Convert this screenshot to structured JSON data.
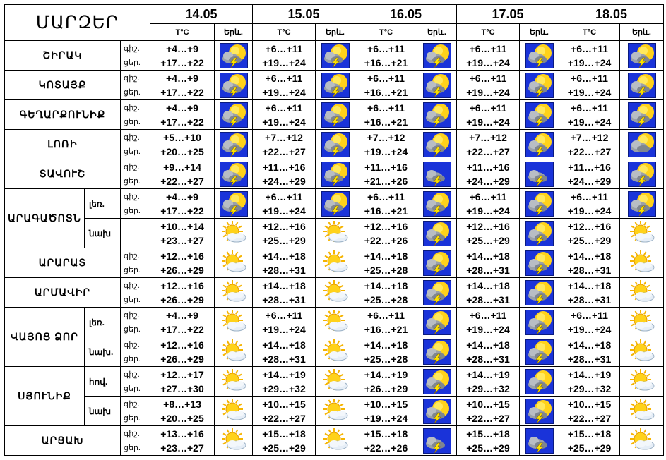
{
  "title": "ՄԱՐԶԵՐ",
  "header": {
    "dates": [
      "14.05",
      "15.05",
      "16.05",
      "17.05",
      "18.05"
    ],
    "temp_label": "T°C",
    "icon_label": "Երև."
  },
  "rows": [
    {
      "region": "ՇԻՐԱԿ",
      "subrows": [
        {
          "label": "",
          "times": [
            "գիշ.",
            "ցեր."
          ],
          "days": [
            {
              "night": "+4…+9",
              "day": "+17…+22",
              "icon": "sun-cloud-thunder-icon"
            },
            {
              "night": "+6…+11",
              "day": "+19…+24",
              "icon": "sun-cloud-thunder-icon"
            },
            {
              "night": "+6…+11",
              "day": "+16…+21",
              "icon": "sun-cloud-thunder-icon"
            },
            {
              "night": "+6…+11",
              "day": "+19…+24",
              "icon": "sun-cloud-thunder-icon"
            },
            {
              "night": "+6…+11",
              "day": "+19…+24",
              "icon": "sun-cloud-thunder-icon"
            }
          ]
        }
      ]
    },
    {
      "region": "ԿՈՏԱՅՔ",
      "subrows": [
        {
          "label": "",
          "times": [
            "գիշ.",
            "ցեր."
          ],
          "days": [
            {
              "night": "+4…+9",
              "day": "+17…+22",
              "icon": "sun-cloud-thunder-icon"
            },
            {
              "night": "+6…+11",
              "day": "+19…+24",
              "icon": "sun-cloud-thunder-icon"
            },
            {
              "night": "+6…+11",
              "day": "+16…+21",
              "icon": "sun-cloud-thunder-icon"
            },
            {
              "night": "+6…+11",
              "day": "+19…+24",
              "icon": "sun-cloud-thunder-icon"
            },
            {
              "night": "+6…+11",
              "day": "+19…+24",
              "icon": "sun-cloud-thunder-icon"
            }
          ]
        }
      ]
    },
    {
      "region": "ԳԵՂԱՐՔՈՒՆԻՔ",
      "subrows": [
        {
          "label": "",
          "times": [
            "գիշ.",
            "ցեր."
          ],
          "days": [
            {
              "night": "+4…+9",
              "day": "+17…+22",
              "icon": "sun-cloud-thunder-icon"
            },
            {
              "night": "+6…+11",
              "day": "+19…+24",
              "icon": "sun-cloud-thunder-icon"
            },
            {
              "night": "+6…+11",
              "day": "+16…+21",
              "icon": "sun-cloud-thunder-icon"
            },
            {
              "night": "+6…+11",
              "day": "+19…+24",
              "icon": "sun-cloud-thunder-icon"
            },
            {
              "night": "+6…+11",
              "day": "+19…+24",
              "icon": "sun-cloud-thunder-icon"
            }
          ]
        }
      ]
    },
    {
      "region": "ԼՈՌԻ",
      "subrows": [
        {
          "label": "",
          "times": [
            "գիշ.",
            "ցեր."
          ],
          "days": [
            {
              "night": "+5…+10",
              "day": "+20…+25",
              "icon": "sun-cloud-thunder-icon"
            },
            {
              "night": "+7…+12",
              "day": "+22…+27",
              "icon": "sun-cloud-thunder-icon"
            },
            {
              "night": "+7…+12",
              "day": "+19…+24",
              "icon": "sun-cloud-thunder-icon"
            },
            {
              "night": "+7…+12",
              "day": "+22…+27",
              "icon": "sun-cloud-thunder-icon"
            },
            {
              "night": "+7…+12",
              "day": "+22…+27",
              "icon": "sun-cloud-icon"
            }
          ]
        }
      ]
    },
    {
      "region": "ՏԱՎՈՒՇ",
      "subrows": [
        {
          "label": "",
          "times": [
            "գիշ.",
            "ցեր."
          ],
          "days": [
            {
              "night": "+9…+14",
              "day": "+22…+27",
              "icon": "sun-cloud-thunder-icon"
            },
            {
              "night": "+11…+16",
              "day": "+24…+29",
              "icon": "sun-cloud-thunder-icon"
            },
            {
              "night": "+11…+16",
              "day": "+21…+26",
              "icon": "cloud-thunder-icon"
            },
            {
              "night": "+11…+16",
              "day": "+24…+29",
              "icon": "cloud-thunder-icon"
            },
            {
              "night": "+11…+16",
              "day": "+24…+29",
              "icon": "sun-cloud-thunder-icon"
            }
          ]
        }
      ]
    },
    {
      "region": "ԱՐԱԳԱԾՈՏՆ",
      "subrows": [
        {
          "label": "լեռ.",
          "times": [
            "գիշ.",
            "ցեր."
          ],
          "days": [
            {
              "night": "+4…+9",
              "day": "+17…+22",
              "icon": "sun-cloud-thunder-icon"
            },
            {
              "night": "+6…+11",
              "day": "+19…+24",
              "icon": "sun-cloud-thunder-icon"
            },
            {
              "night": "+6…+11",
              "day": "+16…+21",
              "icon": "sun-cloud-thunder-icon"
            },
            {
              "night": "+6…+11",
              "day": "+19…+24",
              "icon": "sun-cloud-thunder-icon"
            },
            {
              "night": "+6…+11",
              "day": "+19…+24",
              "icon": "sun-cloud-thunder-icon"
            }
          ]
        },
        {
          "label": "նախ",
          "times": [
            "",
            ""
          ],
          "days": [
            {
              "night": "+10…+14",
              "day": "+23…+27",
              "icon": "partly-cloudy-icon"
            },
            {
              "night": "+12…+16",
              "day": "+25…+29",
              "icon": "partly-cloudy-icon"
            },
            {
              "night": "+12…+16",
              "day": "+22…+26",
              "icon": "sun-cloud-thunder-icon"
            },
            {
              "night": "+12…+16",
              "day": "+25…+29",
              "icon": "sun-cloud-thunder-icon"
            },
            {
              "night": "+12…+16",
              "day": "+25…+29",
              "icon": "partly-cloudy-icon"
            }
          ]
        }
      ]
    },
    {
      "region": "ԱՐԱՐԱՏ",
      "subrows": [
        {
          "label": "",
          "times": [
            "գիշ.",
            "ցեր."
          ],
          "days": [
            {
              "night": "+12…+16",
              "day": "+26…+29",
              "icon": "partly-cloudy-icon"
            },
            {
              "night": "+14…+18",
              "day": "+28…+31",
              "icon": "partly-cloudy-icon"
            },
            {
              "night": "+14…+18",
              "day": "+25…+28",
              "icon": "sun-cloud-thunder-icon"
            },
            {
              "night": "+14…+18",
              "day": "+28…+31",
              "icon": "sun-cloud-thunder-icon"
            },
            {
              "night": "+14…+18",
              "day": "+28…+31",
              "icon": "partly-cloudy-icon"
            }
          ]
        }
      ]
    },
    {
      "region": "ԱՐՄԱՎԻՐ",
      "subrows": [
        {
          "label": "",
          "times": [
            "գիշ.",
            "ցեր."
          ],
          "days": [
            {
              "night": "+12…+16",
              "day": "+26…+29",
              "icon": "partly-cloudy-icon"
            },
            {
              "night": "+14…+18",
              "day": "+28…+31",
              "icon": "partly-cloudy-icon"
            },
            {
              "night": "+14…+18",
              "day": "+25…+28",
              "icon": "sun-cloud-thunder-icon"
            },
            {
              "night": "+14…+18",
              "day": "+28…+31",
              "icon": "sun-cloud-thunder-icon"
            },
            {
              "night": "+14…+18",
              "day": "+28…+31",
              "icon": "partly-cloudy-icon"
            }
          ]
        }
      ]
    },
    {
      "region": "ՎԱՅՈՑ ՁՈՐ",
      "subrows": [
        {
          "label": "լեռ.",
          "times": [
            "գիշ.",
            "ցեր."
          ],
          "days": [
            {
              "night": "+4…+9",
              "day": "+17…+22",
              "icon": "partly-cloudy-icon"
            },
            {
              "night": "+6…+11",
              "day": "+19…+24",
              "icon": "partly-cloudy-icon"
            },
            {
              "night": "+6…+11",
              "day": "+16…+21",
              "icon": "sun-cloud-thunder-icon"
            },
            {
              "night": "+6…+11",
              "day": "+19…+24",
              "icon": "sun-cloud-thunder-icon"
            },
            {
              "night": "+6…+11",
              "day": "+19…+24",
              "icon": "partly-cloudy-icon"
            }
          ]
        },
        {
          "label": "նախ.",
          "times": [
            "գիշ.",
            "ցեր."
          ],
          "days": [
            {
              "night": "+12…+16",
              "day": "+26…+29",
              "icon": "partly-cloudy-icon"
            },
            {
              "night": "+14…+18",
              "day": "+28…+31",
              "icon": "partly-cloudy-icon"
            },
            {
              "night": "+14…+18",
              "day": "+25…+28",
              "icon": "sun-cloud-thunder-icon"
            },
            {
              "night": "+14…+18",
              "day": "+28…+31",
              "icon": "sun-cloud-thunder-icon"
            },
            {
              "night": "+14…+18",
              "day": "+28…+31",
              "icon": "partly-cloudy-icon"
            }
          ]
        }
      ]
    },
    {
      "region": "ՍՅՈՒՆԻՔ",
      "subrows": [
        {
          "label": "հով.",
          "times": [
            "գիշ.",
            "ցեր."
          ],
          "days": [
            {
              "night": "+12…+17",
              "day": "+27…+30",
              "icon": "partly-cloudy-icon"
            },
            {
              "night": "+14…+19",
              "day": "+29…+32",
              "icon": "partly-cloudy-icon"
            },
            {
              "night": "+14…+19",
              "day": "+26…+29",
              "icon": "sun-cloud-thunder-icon"
            },
            {
              "night": "+14…+19",
              "day": "+29…+32",
              "icon": "sun-cloud-thunder-icon"
            },
            {
              "night": "+14…+19",
              "day": "+29…+32",
              "icon": "partly-cloudy-icon"
            }
          ]
        },
        {
          "label": "նախ",
          "times": [
            "գիշ.",
            "ցեր."
          ],
          "days": [
            {
              "night": "+8…+13",
              "day": "+20…+25",
              "icon": "partly-cloudy-icon"
            },
            {
              "night": "+10…+15",
              "day": "+22…+27",
              "icon": "partly-cloudy-icon"
            },
            {
              "night": "+10…+15",
              "day": "+19…+24",
              "icon": "sun-cloud-thunder-icon"
            },
            {
              "night": "+10…+15",
              "day": "+22…+27",
              "icon": "sun-cloud-thunder-icon"
            },
            {
              "night": "+10…+15",
              "day": "+22…+27",
              "icon": "partly-cloudy-icon"
            }
          ]
        }
      ]
    },
    {
      "region": "ԱՐՑԱԽ",
      "subrows": [
        {
          "label": "",
          "times": [
            "գիշ.",
            "ցեր."
          ],
          "days": [
            {
              "night": "+13…+16",
              "day": "+23…+27",
              "icon": "partly-cloudy-icon"
            },
            {
              "night": "+15…+18",
              "day": "+25…+29",
              "icon": "partly-cloudy-icon"
            },
            {
              "night": "+15…+18",
              "day": "+22…+26",
              "icon": "cloud-thunder-icon"
            },
            {
              "night": "+15…+18",
              "day": "+25…+29",
              "icon": "cloud-thunder-icon"
            },
            {
              "night": "+15…+18",
              "day": "+25…+29",
              "icon": "partly-cloudy-icon"
            }
          ]
        }
      ]
    }
  ],
  "colors": {
    "icon_bg_blue": "#1a33d9",
    "sun": "#ffd21a",
    "cloud": "#9aa0a8",
    "lightning": "#ffe500"
  }
}
